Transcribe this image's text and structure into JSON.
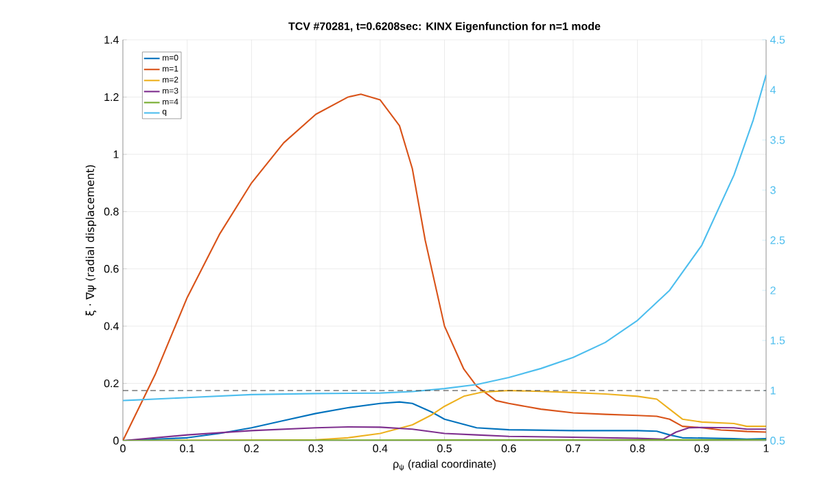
{
  "chart_data": {
    "type": "line",
    "title": "TCV #70281, t=0.6208sec: KINX Eigenfunction for n=1 mode",
    "xlabel": "ρ$_{ψ}$ (radial coordinate)",
    "ylabel": "ξ · ∇ψ (radial displacement)",
    "xlim": [
      0,
      1
    ],
    "xticks": [
      0,
      0.1,
      0.2,
      0.3,
      0.4,
      0.5,
      0.6,
      0.7,
      0.8,
      0.9,
      1
    ],
    "ylim": [
      0,
      1.4
    ],
    "yticks": [
      0,
      0.2,
      0.4,
      0.6,
      0.8,
      1,
      1.2,
      1.4
    ],
    "y2lim": [
      0.5,
      4.5
    ],
    "y2ticks": [
      0.5,
      1,
      1.5,
      2,
      2.5,
      3,
      3.5,
      4,
      4.5
    ],
    "grid": true,
    "legend": "top left",
    "line_style": "solid",
    "marker": "none",
    "ref_lines": [
      {
        "axis": "y2",
        "value": 1,
        "color": "#333333",
        "line_style": "dashed"
      }
    ],
    "series": [
      {
        "name": "m=0",
        "color": "#0072bd",
        "x": [
          0,
          0.1,
          0.15,
          0.2,
          0.25,
          0.3,
          0.35,
          0.4,
          0.43,
          0.45,
          0.48,
          0.5,
          0.55,
          0.6,
          0.7,
          0.8,
          0.83,
          0.85,
          0.87,
          0.95,
          0.97,
          1
        ],
        "values": [
          0,
          0.01,
          0.025,
          0.045,
          0.07,
          0.095,
          0.115,
          0.13,
          0.135,
          0.13,
          0.1,
          0.075,
          0.045,
          0.038,
          0.035,
          0.035,
          0.033,
          0.02,
          0.01,
          0.007,
          0.005,
          0.007
        ]
      },
      {
        "name": "m=1",
        "color": "#d95319",
        "x": [
          0,
          0.05,
          0.1,
          0.15,
          0.2,
          0.25,
          0.3,
          0.35,
          0.37,
          0.4,
          0.43,
          0.45,
          0.47,
          0.5,
          0.53,
          0.55,
          0.58,
          0.6,
          0.65,
          0.7,
          0.75,
          0.8,
          0.83,
          0.85,
          0.87,
          0.9,
          0.93,
          0.95,
          0.97,
          1
        ],
        "values": [
          0,
          0.23,
          0.5,
          0.72,
          0.9,
          1.04,
          1.14,
          1.2,
          1.21,
          1.19,
          1.1,
          0.95,
          0.7,
          0.4,
          0.25,
          0.19,
          0.14,
          0.13,
          0.11,
          0.097,
          0.092,
          0.088,
          0.085,
          0.075,
          0.05,
          0.045,
          0.037,
          0.035,
          0.032,
          0.03
        ]
      },
      {
        "name": "m=2",
        "color": "#edb120",
        "x": [
          0,
          0.3,
          0.35,
          0.4,
          0.45,
          0.48,
          0.5,
          0.53,
          0.56,
          0.6,
          0.65,
          0.7,
          0.75,
          0.8,
          0.83,
          0.85,
          0.87,
          0.9,
          0.95,
          0.97,
          1
        ],
        "values": [
          0,
          0.003,
          0.01,
          0.025,
          0.055,
          0.09,
          0.12,
          0.155,
          0.17,
          0.175,
          0.172,
          0.168,
          0.163,
          0.155,
          0.145,
          0.11,
          0.075,
          0.065,
          0.06,
          0.05,
          0.05
        ]
      },
      {
        "name": "m=3",
        "color": "#7e2f8e",
        "x": [
          0,
          0.1,
          0.2,
          0.3,
          0.35,
          0.4,
          0.45,
          0.5,
          0.55,
          0.6,
          0.7,
          0.8,
          0.84,
          0.86,
          0.88,
          0.9,
          0.95,
          0.97,
          1
        ],
        "values": [
          0,
          0.02,
          0.035,
          0.045,
          0.048,
          0.047,
          0.04,
          0.025,
          0.02,
          0.015,
          0.012,
          0.008,
          0.005,
          0.03,
          0.045,
          0.046,
          0.045,
          0.04,
          0.04
        ]
      },
      {
        "name": "m=4",
        "color": "#77ac30",
        "x": [
          0,
          0.5,
          1
        ],
        "values": [
          0,
          0.002,
          0.003
        ]
      },
      {
        "name": "q",
        "color": "#4dbeee",
        "axis": "y2",
        "x": [
          0,
          0.1,
          0.2,
          0.3,
          0.4,
          0.45,
          0.5,
          0.55,
          0.6,
          0.65,
          0.7,
          0.75,
          0.8,
          0.85,
          0.9,
          0.95,
          0.98,
          1
        ],
        "values": [
          0.9,
          0.93,
          0.96,
          0.97,
          0.975,
          0.99,
          1.02,
          1.06,
          1.13,
          1.22,
          1.33,
          1.48,
          1.7,
          2.0,
          2.45,
          3.15,
          3.7,
          4.15
        ]
      }
    ]
  }
}
